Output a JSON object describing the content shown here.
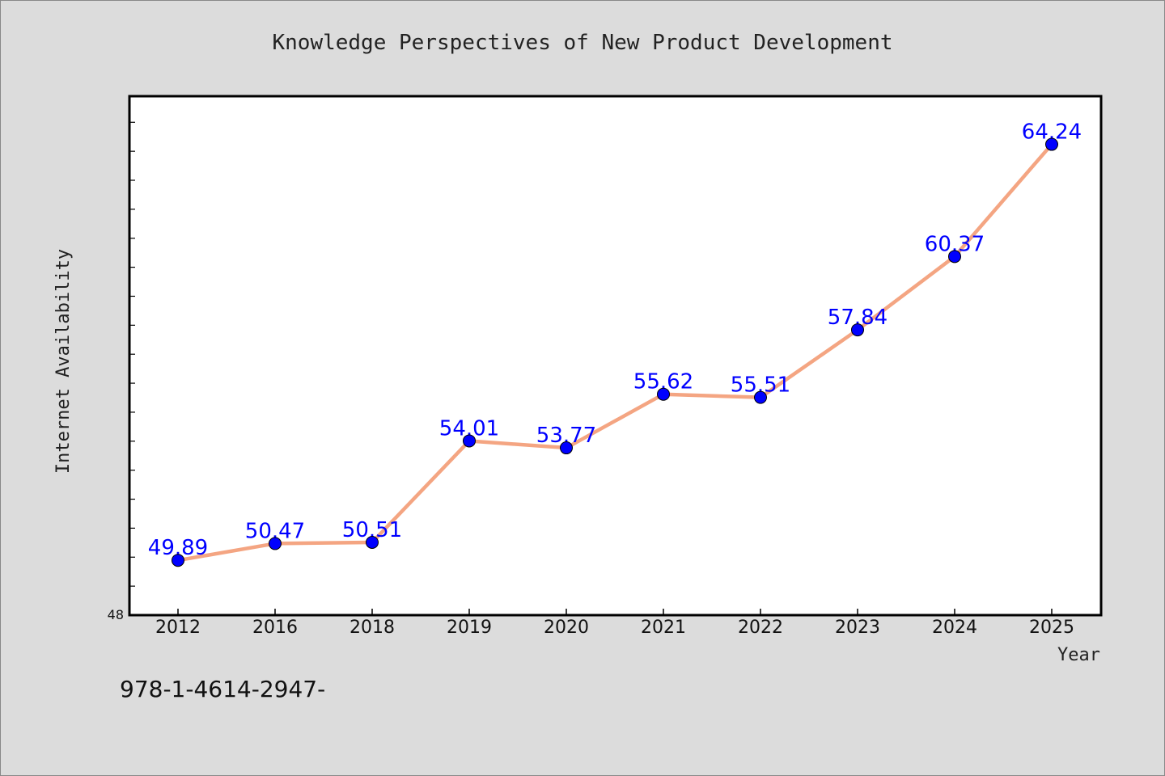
{
  "chart_data": {
    "type": "line",
    "title": "Knowledge Perspectives of New Product Development",
    "xlabel": "Year",
    "ylabel": "Internet Availability",
    "categories": [
      "2012",
      "2016",
      "2018",
      "2019",
      "2020",
      "2021",
      "2022",
      "2023",
      "2024",
      "2025"
    ],
    "series": [
      {
        "values": [
          49.89,
          50.47,
          50.51,
          54.01,
          53.77,
          55.62,
          55.51,
          57.84,
          60.37,
          64.24
        ]
      }
    ],
    "data_labels": [
      "49.89",
      "50.47",
      "50.51",
      "54.01",
      "53.77",
      "55.62",
      "55.51",
      "57.84",
      "60.37",
      "64.24"
    ],
    "ylim": [
      48,
      65.9
    ],
    "y_tick_label": "48",
    "grid": false,
    "line_color": "#f4a582",
    "marker_color": "#0000ff",
    "label_color": "#0000ff",
    "background_color": "#dcdcdc",
    "plot_background_color": "#ffffff"
  },
  "footnote": "978-1-4614-2947-"
}
